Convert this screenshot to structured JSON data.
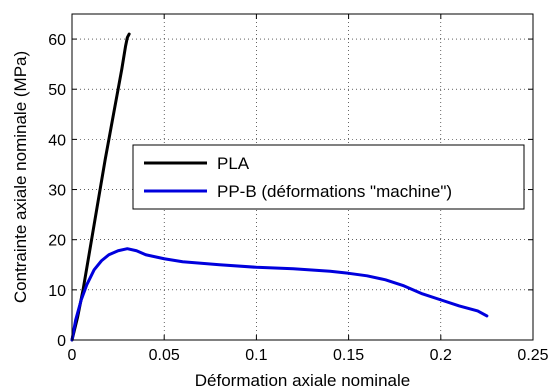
{
  "chart_data": {
    "type": "line",
    "xlabel": "Déformation axiale nominale",
    "ylabel": "Contrainte axiale nominale (MPa)",
    "xlim": [
      0,
      0.25
    ],
    "ylim": [
      0,
      65
    ],
    "xticks": [
      0,
      0.05,
      0.1,
      0.15,
      0.2,
      0.25
    ],
    "xtick_labels": [
      "0",
      "0.05",
      "0.1",
      "0.15",
      "0.2",
      "0.25"
    ],
    "yticks": [
      0,
      10,
      20,
      30,
      40,
      50,
      60
    ],
    "ytick_labels": [
      "0",
      "10",
      "20",
      "30",
      "40",
      "50",
      "60"
    ],
    "grid": true,
    "legend_position": "center-right",
    "series": [
      {
        "name": "PLA",
        "color": "#000000",
        "x": [
          0,
          0.003,
          0.006,
          0.009,
          0.012,
          0.015,
          0.018,
          0.021,
          0.024,
          0.027,
          0.029,
          0.03,
          0.031
        ],
        "y": [
          0,
          4.5,
          10,
          16.5,
          23,
          29.5,
          36,
          42,
          48,
          54,
          58.5,
          60.3,
          61
        ]
      },
      {
        "name": "PP-B (déformations \"machine\")",
        "color": "#0000dd",
        "x": [
          0,
          0.002,
          0.005,
          0.008,
          0.012,
          0.016,
          0.02,
          0.025,
          0.03,
          0.035,
          0.04,
          0.05,
          0.06,
          0.08,
          0.1,
          0.12,
          0.14,
          0.15,
          0.16,
          0.17,
          0.18,
          0.19,
          0.2,
          0.21,
          0.22,
          0.225
        ],
        "y": [
          0,
          4,
          8,
          11,
          14,
          15.8,
          17,
          17.8,
          18.2,
          17.8,
          17,
          16.2,
          15.6,
          15,
          14.5,
          14.2,
          13.7,
          13.3,
          12.8,
          12,
          10.8,
          9.2,
          8,
          6.8,
          5.8,
          4.8
        ]
      }
    ]
  }
}
